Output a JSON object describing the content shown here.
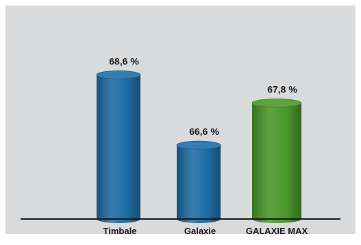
{
  "chart_data": {
    "type": "bar",
    "title": "",
    "xlabel": "",
    "ylabel": "",
    "categories": [
      "Timbale",
      "Galaxie",
      "GALAXIE MAX"
    ],
    "values": [
      68.6,
      66.6,
      67.8
    ],
    "value_labels": [
      "68,6 %",
      "66,6 %",
      "67,8 %"
    ],
    "ylim": [
      64.5,
      69.6
    ],
    "grid": false,
    "colors": {
      "Timbale": "#1f6fa6",
      "Galaxie": "#1f6fa6",
      "GALAXIE MAX": "#4b9a2a"
    },
    "background": "#d9dadc",
    "axis_color": "#1a1a1a",
    "bar_shape": "cylinder"
  }
}
